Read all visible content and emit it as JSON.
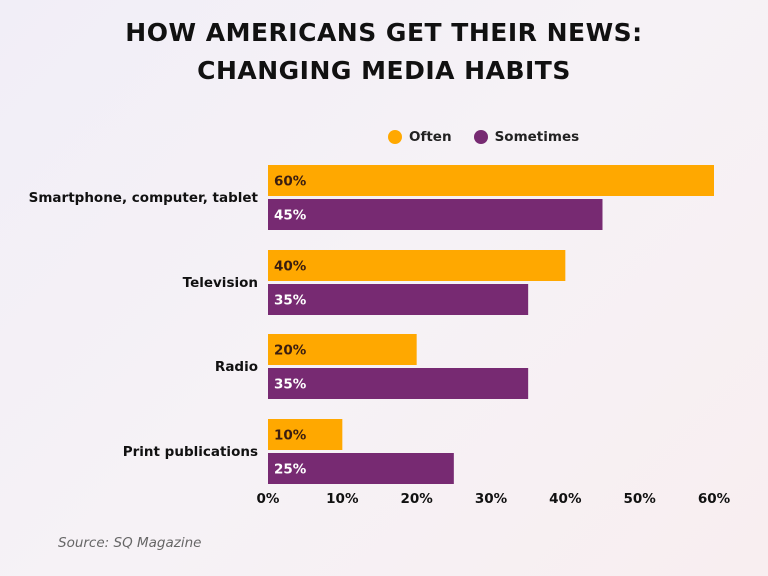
{
  "chart_data": {
    "type": "bar",
    "orientation": "horizontal",
    "title": "HOW AMERICANS GET THEIR NEWS:",
    "subtitle": "CHANGING MEDIA HABITS",
    "categories": [
      "Smartphone, computer, tablet",
      "Television",
      "Radio",
      "Print publications"
    ],
    "series": [
      {
        "name": "Often",
        "color": "#FFA800",
        "values": [
          60,
          40,
          20,
          10
        ]
      },
      {
        "name": "Sometimes",
        "color": "#772A72",
        "values": [
          45,
          35,
          35,
          25
        ]
      }
    ],
    "xlim": [
      0,
      60
    ],
    "xticks": [
      "0%",
      "10%",
      "20%",
      "30%",
      "40%",
      "50%",
      "60%"
    ],
    "legend": "top",
    "grid": false,
    "source": "Source: SQ Magazine"
  }
}
